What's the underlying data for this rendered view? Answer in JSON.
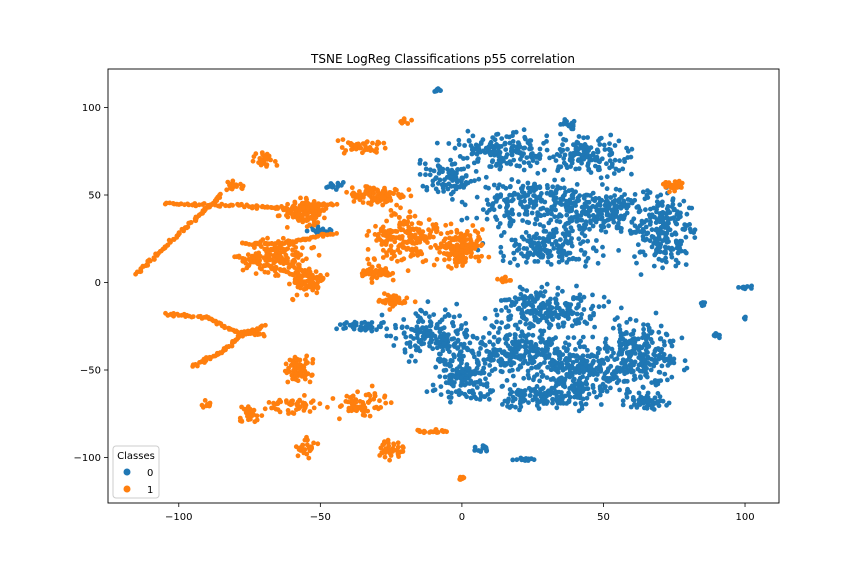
{
  "chart_data": {
    "type": "scatter",
    "title": "TSNE LogReg Classifications p55 correlation",
    "xlabel": "",
    "ylabel": "",
    "xlim": [
      -125,
      112
    ],
    "ylim": [
      -126,
      122
    ],
    "x_ticks": [
      -100,
      -50,
      0,
      50,
      100
    ],
    "y_ticks": [
      -100,
      -50,
      0,
      50,
      100
    ],
    "grid": false,
    "legend": {
      "title": "Classes",
      "placement": "lower-left",
      "entries": [
        {
          "label": "0",
          "color": "#1f77b4"
        },
        {
          "label": "1",
          "color": "#ff7f0e"
        }
      ]
    },
    "series": [
      {
        "name": "0",
        "color": "#1f77b4",
        "clusters": [
          {
            "cx": 15,
            "cy": 75,
            "rx": 18,
            "ry": 10,
            "n": 160
          },
          {
            "cx": 45,
            "cy": 72,
            "rx": 14,
            "ry": 10,
            "n": 140
          },
          {
            "cx": 25,
            "cy": 45,
            "rx": 20,
            "ry": 14,
            "n": 220
          },
          {
            "cx": 50,
            "cy": 40,
            "rx": 20,
            "ry": 14,
            "n": 220
          },
          {
            "cx": 72,
            "cy": 30,
            "rx": 10,
            "ry": 20,
            "n": 200
          },
          {
            "cx": 30,
            "cy": 20,
            "rx": 18,
            "ry": 10,
            "n": 160
          },
          {
            "cx": -5,
            "cy": 60,
            "rx": 10,
            "ry": 10,
            "n": 90
          },
          {
            "cx": 30,
            "cy": -15,
            "rx": 20,
            "ry": 12,
            "n": 220
          },
          {
            "cx": 20,
            "cy": -40,
            "rx": 25,
            "ry": 14,
            "n": 300
          },
          {
            "cx": 45,
            "cy": -50,
            "rx": 20,
            "ry": 14,
            "n": 240
          },
          {
            "cx": 65,
            "cy": -40,
            "rx": 12,
            "ry": 20,
            "n": 200
          },
          {
            "cx": -10,
            "cy": -30,
            "rx": 14,
            "ry": 14,
            "n": 160
          },
          {
            "cx": 0,
            "cy": -55,
            "rx": 10,
            "ry": 12,
            "n": 120
          },
          {
            "cx": 30,
            "cy": -65,
            "rx": 18,
            "ry": 7,
            "n": 150
          },
          {
            "cx": 65,
            "cy": -68,
            "rx": 6,
            "ry": 4,
            "n": 60
          },
          {
            "cx": -35,
            "cy": -25,
            "rx": 8,
            "ry": 3,
            "n": 40
          },
          {
            "cx": 38,
            "cy": 90,
            "rx": 3,
            "ry": 3,
            "n": 18
          },
          {
            "cx": -8,
            "cy": 110,
            "rx": 2,
            "ry": 1,
            "n": 10
          },
          {
            "cx": 7,
            "cy": -95,
            "rx": 3,
            "ry": 2,
            "n": 14
          },
          {
            "cx": 22,
            "cy": -101,
            "rx": 5,
            "ry": 1,
            "n": 18
          },
          {
            "cx": 85,
            "cy": -12,
            "rx": 2,
            "ry": 1,
            "n": 8
          },
          {
            "cx": 100,
            "cy": -3,
            "rx": 3,
            "ry": 1,
            "n": 10
          },
          {
            "cx": 90,
            "cy": -30,
            "rx": 2,
            "ry": 2,
            "n": 8
          },
          {
            "cx": 100,
            "cy": -20,
            "rx": 1,
            "ry": 1,
            "n": 4
          },
          {
            "cx": -45,
            "cy": 55,
            "rx": 3,
            "ry": 2,
            "n": 14
          },
          {
            "cx": -50,
            "cy": 30,
            "rx": 4,
            "ry": 3,
            "n": 20
          }
        ]
      },
      {
        "name": "1",
        "color": "#ff7f0e",
        "clusters": [
          {
            "cx": -20,
            "cy": 25,
            "rx": 12,
            "ry": 14,
            "n": 180
          },
          {
            "cx": 0,
            "cy": 20,
            "rx": 8,
            "ry": 10,
            "n": 150
          },
          {
            "cx": -30,
            "cy": 50,
            "rx": 10,
            "ry": 5,
            "n": 100
          },
          {
            "cx": -55,
            "cy": 40,
            "rx": 8,
            "ry": 8,
            "n": 110
          },
          {
            "cx": -65,
            "cy": 15,
            "rx": 12,
            "ry": 10,
            "n": 150
          },
          {
            "cx": -55,
            "cy": 0,
            "rx": 6,
            "ry": 8,
            "n": 80
          },
          {
            "cx": -30,
            "cy": 5,
            "rx": 6,
            "ry": 4,
            "n": 50
          },
          {
            "cx": -25,
            "cy": -10,
            "rx": 6,
            "ry": 4,
            "n": 40
          },
          {
            "cx": -57,
            "cy": -50,
            "rx": 5,
            "ry": 8,
            "n": 60
          },
          {
            "cx": -60,
            "cy": -70,
            "rx": 10,
            "ry": 5,
            "n": 50
          },
          {
            "cx": -35,
            "cy": -70,
            "rx": 10,
            "ry": 8,
            "n": 60
          },
          {
            "cx": -25,
            "cy": -95,
            "rx": 5,
            "ry": 6,
            "n": 40
          },
          {
            "cx": -10,
            "cy": -85,
            "rx": 6,
            "ry": 1,
            "n": 24
          },
          {
            "cx": -55,
            "cy": -95,
            "rx": 4,
            "ry": 6,
            "n": 30
          },
          {
            "cx": -75,
            "cy": -75,
            "rx": 4,
            "ry": 5,
            "n": 24
          },
          {
            "cx": -90,
            "cy": -70,
            "rx": 2,
            "ry": 2,
            "n": 10
          },
          {
            "cx": -70,
            "cy": 70,
            "rx": 4,
            "ry": 6,
            "n": 30
          },
          {
            "cx": -80,
            "cy": 55,
            "rx": 4,
            "ry": 3,
            "n": 20
          },
          {
            "cx": -35,
            "cy": 78,
            "rx": 8,
            "ry": 4,
            "n": 40
          },
          {
            "cx": -20,
            "cy": 92,
            "rx": 2,
            "ry": 2,
            "n": 10
          },
          {
            "cx": 75,
            "cy": 55,
            "rx": 4,
            "ry": 3,
            "n": 30
          },
          {
            "cx": 0,
            "cy": -112,
            "rx": 1,
            "ry": 1,
            "n": 8
          },
          {
            "cx": 15,
            "cy": 2,
            "rx": 3,
            "ry": 2,
            "n": 14
          }
        ],
        "curves": [
          {
            "points": [
              [
                -105,
                45
              ],
              [
                -80,
                44
              ],
              [
                -60,
                42
              ],
              [
                -45,
                45
              ]
            ],
            "n": 90
          },
          {
            "points": [
              [
                -115,
                5
              ],
              [
                -105,
                20
              ],
              [
                -95,
                35
              ],
              [
                -85,
                50
              ]
            ],
            "n": 80
          },
          {
            "points": [
              [
                -105,
                -18
              ],
              [
                -90,
                -20
              ],
              [
                -80,
                -28
              ],
              [
                -70,
                -30
              ]
            ],
            "n": 70
          },
          {
            "points": [
              [
                -95,
                -48
              ],
              [
                -85,
                -40
              ],
              [
                -78,
                -30
              ],
              [
                -70,
                -25
              ]
            ],
            "n": 60
          },
          {
            "points": [
              [
                -78,
                22
              ],
              [
                -65,
                22
              ],
              [
                -55,
                25
              ],
              [
                -45,
                28
              ]
            ],
            "n": 50
          },
          {
            "points": [
              [
                -80,
                15
              ],
              [
                -70,
                10
              ],
              [
                -60,
                5
              ],
              [
                -50,
                2
              ]
            ],
            "n": 40
          }
        ]
      }
    ]
  }
}
